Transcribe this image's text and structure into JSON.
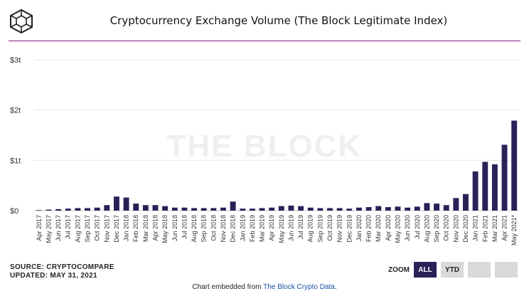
{
  "title": "Cryptocurrency Exchange Volume (The Block Legitimate Index)",
  "watermark": "THE BLOCK",
  "source": "SOURCE: CRYPTOCOMPARE",
  "updated": "UPDATED: MAY 31, 2021",
  "zoom": {
    "label": "ZOOM",
    "buttons": [
      "ALL",
      "YTD",
      "",
      ""
    ],
    "active": "ALL"
  },
  "embed": {
    "prefix": "Chart embedded from ",
    "link_text": "The Block Crypto Data",
    "suffix": "."
  },
  "colors": {
    "bar": "#2b2157",
    "accent_rule": "#8b1f86",
    "grid": "#e6e6e6",
    "active_button": "#2b2157"
  },
  "chart_data": {
    "type": "bar",
    "title": "Cryptocurrency Exchange Volume (The Block Legitimate Index)",
    "xlabel": "",
    "ylabel": "",
    "ylim": [
      0,
      3
    ],
    "yticks": [
      {
        "value": 0,
        "label": "$0"
      },
      {
        "value": 1,
        "label": "$1t"
      },
      {
        "value": 2,
        "label": "$2t"
      },
      {
        "value": 3,
        "label": "$3t"
      }
    ],
    "grid": true,
    "legend": "none",
    "categories": [
      "Apr 2017",
      "May 2017",
      "Jun 2017",
      "Jul 2017",
      "Aug 2017",
      "Sep 2017",
      "Oct 2017",
      "Nov 2017",
      "Dec 2017",
      "Jan 2018",
      "Feb 2018",
      "Mar 2018",
      "Apr 2018",
      "May 2018",
      "Jun 2018",
      "Jul 2018",
      "Aug 2018",
      "Sep 2018",
      "Oct 2018",
      "Nov 2018",
      "Dec 2018",
      "Jan 2019",
      "Feb 2019",
      "Mar 2019",
      "Apr 2019",
      "May 2019",
      "Jun 2019",
      "Jul 2019",
      "Aug 2019",
      "Sep 2019",
      "Oct 2019",
      "Nov 2019",
      "Dec 2019",
      "Jan 2020",
      "Feb 2020",
      "Mar 2020",
      "Apr 2020",
      "May 2020",
      "Jun 2020",
      "Jul 2020",
      "Aug 2020",
      "Sep 2020",
      "Oct 2020",
      "Nov 2020",
      "Dec 2020",
      "Jan 2021",
      "Feb 2021",
      "Mar 2021",
      "Apr 2021",
      "May 2021*"
    ],
    "values": [
      0.01,
      0.02,
      0.03,
      0.04,
      0.05,
      0.05,
      0.06,
      0.11,
      0.28,
      0.26,
      0.14,
      0.11,
      0.11,
      0.09,
      0.06,
      0.06,
      0.05,
      0.05,
      0.05,
      0.06,
      0.18,
      0.04,
      0.04,
      0.05,
      0.06,
      0.09,
      0.1,
      0.09,
      0.06,
      0.05,
      0.05,
      0.05,
      0.04,
      0.06,
      0.07,
      0.09,
      0.07,
      0.08,
      0.06,
      0.08,
      0.15,
      0.14,
      0.11,
      0.25,
      0.33,
      0.78,
      0.97,
      0.92,
      1.31,
      1.79
    ]
  }
}
